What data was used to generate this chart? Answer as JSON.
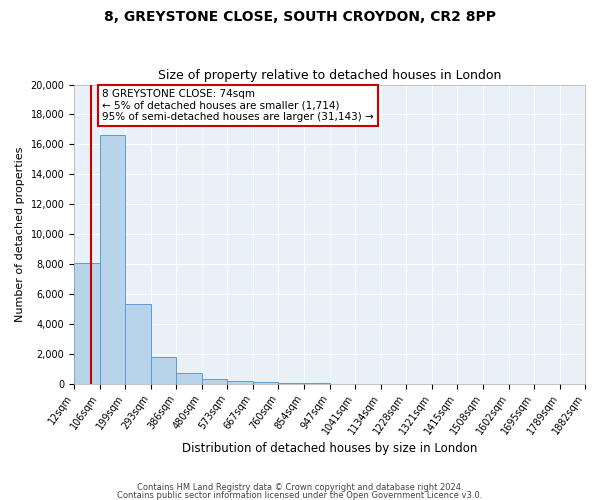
{
  "title": "8, GREYSTONE CLOSE, SOUTH CROYDON, CR2 8PP",
  "subtitle": "Size of property relative to detached houses in London",
  "xlabel": "Distribution of detached houses by size in London",
  "ylabel": "Number of detached properties",
  "bin_edges": [
    12,
    106,
    199,
    293,
    386,
    480,
    573,
    667,
    760,
    854,
    947,
    1041,
    1134,
    1228,
    1321,
    1415,
    1508,
    1602,
    1695,
    1789,
    1882
  ],
  "bar_heights": [
    8100,
    16600,
    5300,
    1800,
    700,
    300,
    200,
    100,
    50,
    25,
    12,
    8,
    5,
    3,
    2,
    1,
    1,
    0,
    0,
    0
  ],
  "bar_color": "#b8d4ea",
  "bar_edge_color": "#5b9bd5",
  "property_size": 74,
  "red_line_color": "#cc0000",
  "annotation_line1": "8 GREYSTONE CLOSE: 74sqm",
  "annotation_line2": "← 5% of detached houses are smaller (1,714)",
  "annotation_line3": "95% of semi-detached houses are larger (31,143) →",
  "annotation_box_color": "#ffffff",
  "annotation_box_edge_color": "#cc0000",
  "ylim": [
    0,
    20000
  ],
  "yticks": [
    0,
    2000,
    4000,
    6000,
    8000,
    10000,
    12000,
    14000,
    16000,
    18000,
    20000
  ],
  "background_color": "#e8f0f8",
  "grid_color": "#ffffff",
  "footer_line1": "Contains HM Land Registry data © Crown copyright and database right 2024.",
  "footer_line2": "Contains public sector information licensed under the Open Government Licence v3.0.",
  "title_fontsize": 10,
  "subtitle_fontsize": 9,
  "tick_label_fontsize": 7,
  "ylabel_fontsize": 8,
  "xlabel_fontsize": 8.5
}
